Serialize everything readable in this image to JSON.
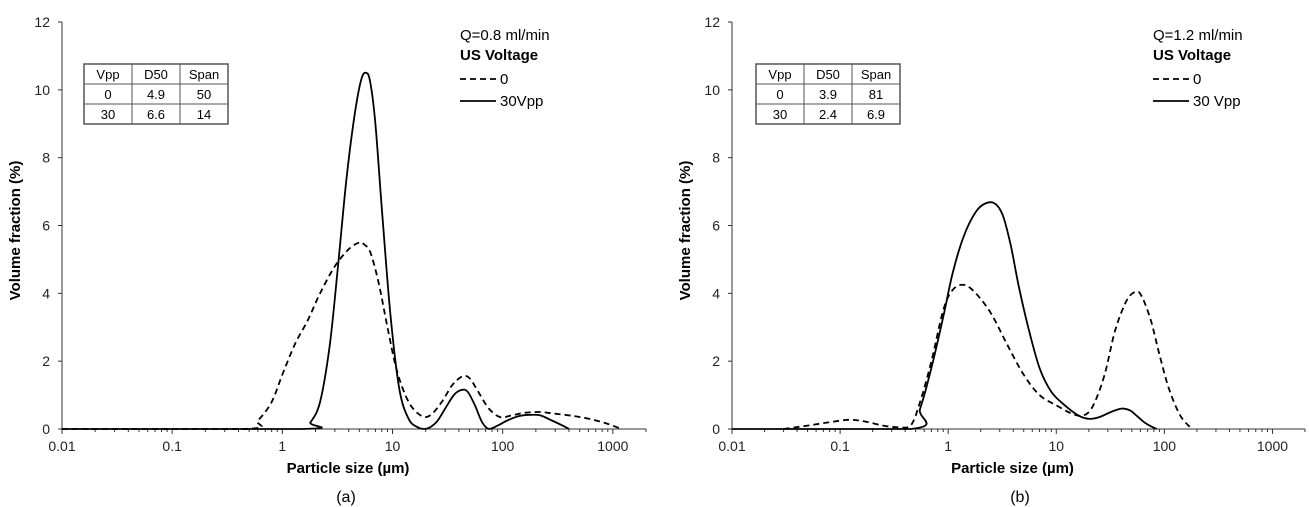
{
  "chart_data": [
    {
      "type": "line",
      "panel_label": "(a)",
      "xlabel": "Particle size (µm)",
      "ylabel": "Volume fraction (%)",
      "x_scale": "log",
      "xlim": [
        0.01,
        2000
      ],
      "ylim": [
        0,
        12
      ],
      "x_ticks": [
        "0.01",
        "0.1",
        "1",
        "10",
        "100",
        "1000"
      ],
      "y_ticks": [
        "0",
        "2",
        "4",
        "6",
        "8",
        "10",
        "12"
      ],
      "grid": false,
      "legend": {
        "title_line": "Q=0.8 ml/min",
        "heading": "US Voltage",
        "placement": "top-right"
      },
      "table": {
        "headers": [
          "Vpp",
          "D50",
          "Span"
        ],
        "rows": [
          [
            "0",
            "4.9",
            "50"
          ],
          [
            "30",
            "6.6",
            "14"
          ]
        ]
      },
      "series": [
        {
          "name": "0",
          "style": "dashed",
          "x": [
            0.01,
            0.45,
            0.6,
            0.8,
            1.0,
            1.3,
            1.7,
            2.2,
            3.0,
            4.0,
            5.0,
            5.5,
            6.3,
            7.5,
            9.0,
            11,
            14,
            18,
            22,
            28,
            35,
            43,
            50,
            60,
            75,
            95,
            120,
            160,
            220,
            300,
            450,
            650,
            900,
            1200
          ],
          "y": [
            0,
            0,
            0.25,
            0.8,
            1.6,
            2.5,
            3.2,
            4.0,
            4.8,
            5.3,
            5.5,
            5.45,
            5.2,
            4.3,
            3.0,
            1.7,
            0.8,
            0.4,
            0.4,
            0.8,
            1.3,
            1.55,
            1.5,
            1.1,
            0.6,
            0.35,
            0.4,
            0.48,
            0.5,
            0.45,
            0.38,
            0.28,
            0.15,
            0
          ]
        },
        {
          "name": "30Vpp",
          "style": "solid",
          "x": [
            0.01,
            1.5,
            1.8,
            2.2,
            2.7,
            3.2,
            3.8,
            4.5,
            5.2,
            5.8,
            6.3,
            7.0,
            8.0,
            9.5,
            11.5,
            14,
            17,
            20,
            25,
            30,
            36,
            42,
            48,
            56,
            65,
            75,
            90,
            110,
            140,
            180,
            220,
            280,
            350,
            400
          ],
          "y": [
            0,
            0,
            0.2,
            0.8,
            2.5,
            4.8,
            7.3,
            9.2,
            10.3,
            10.5,
            10.2,
            9.0,
            6.5,
            3.5,
            1.2,
            0.3,
            0.05,
            0,
            0.2,
            0.6,
            1.0,
            1.15,
            1.1,
            0.7,
            0.2,
            0,
            0.1,
            0.25,
            0.38,
            0.42,
            0.4,
            0.25,
            0.1,
            0
          ]
        }
      ]
    },
    {
      "type": "line",
      "panel_label": "(b)",
      "xlabel": "Particle size (µm)",
      "ylabel": "Volume fraction (%)",
      "x_scale": "log",
      "xlim": [
        0.01,
        2000
      ],
      "ylim": [
        0,
        12
      ],
      "x_ticks": [
        "0.01",
        "0.1",
        "1",
        "10",
        "100",
        "1000"
      ],
      "y_ticks": [
        "0",
        "2",
        "4",
        "6",
        "8",
        "10",
        "12"
      ],
      "grid": false,
      "legend": {
        "title_line": "Q=1.2 ml/min",
        "heading": "US Voltage",
        "placement": "top-right"
      },
      "table": {
        "headers": [
          "Vpp",
          "D50",
          "Span"
        ],
        "rows": [
          [
            "0",
            "3.9",
            "81"
          ],
          [
            "30",
            "2.4",
            "6.9"
          ]
        ]
      },
      "series": [
        {
          "name": "0",
          "style": "dashed",
          "x": [
            0.03,
            0.05,
            0.08,
            0.12,
            0.17,
            0.25,
            0.35,
            0.45,
            0.55,
            0.7,
            0.9,
            1.1,
            1.4,
            1.8,
            2.5,
            3.5,
            5.0,
            7.0,
            10,
            14,
            18,
            22,
            28,
            35,
            45,
            55,
            62,
            75,
            90,
            110,
            140,
            180
          ],
          "y": [
            0,
            0.1,
            0.2,
            0.27,
            0.22,
            0.1,
            0.05,
            0.1,
            0.8,
            2.0,
            3.5,
            4.1,
            4.25,
            4.0,
            3.4,
            2.5,
            1.6,
            1.0,
            0.7,
            0.45,
            0.4,
            0.7,
            1.6,
            2.9,
            3.8,
            4.05,
            3.9,
            3.2,
            2.2,
            1.2,
            0.4,
            0
          ]
        },
        {
          "name": "30 Vpp",
          "style": "solid",
          "x": [
            0.01,
            0.45,
            0.55,
            0.7,
            0.9,
            1.1,
            1.4,
            1.8,
            2.2,
            2.7,
            3.2,
            3.8,
            4.5,
            5.5,
            7.0,
            9.0,
            12,
            16,
            20,
            25,
            32,
            40,
            48,
            55,
            65,
            75,
            85
          ],
          "y": [
            0,
            0,
            0.6,
            1.8,
            3.3,
            4.6,
            5.7,
            6.4,
            6.65,
            6.65,
            6.3,
            5.4,
            4.2,
            3.0,
            1.8,
            1.1,
            0.7,
            0.4,
            0.3,
            0.35,
            0.5,
            0.6,
            0.55,
            0.4,
            0.2,
            0.08,
            0
          ]
        }
      ]
    }
  ]
}
